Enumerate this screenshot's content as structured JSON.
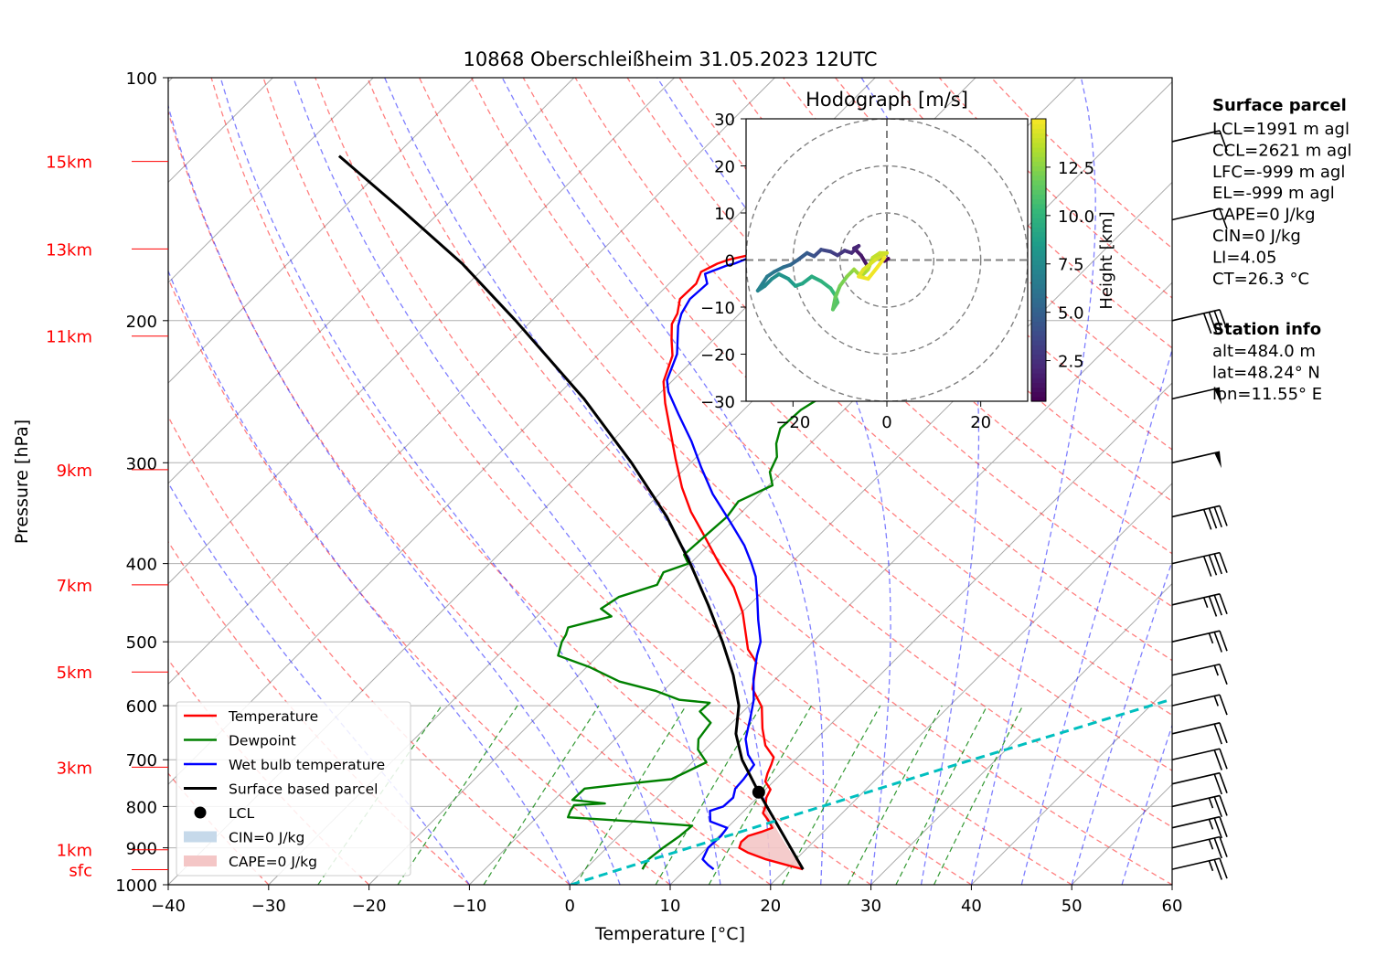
{
  "chart_data": {
    "type": "skew-t",
    "title": "10868 Oberschleißheim 31.05.2023 12UTC",
    "xlabel": "Temperature [°C]",
    "ylabel": "Pressure [hPa]",
    "xlim": [
      -40,
      60
    ],
    "ylim": [
      1000,
      100
    ],
    "x_ticks": [
      -40,
      -30,
      -20,
      -10,
      0,
      10,
      20,
      30,
      40,
      50,
      60
    ],
    "x_tick_labels": [
      "−40",
      "−30",
      "−20",
      "−10",
      "0",
      "10",
      "20",
      "30",
      "40",
      "50",
      "60"
    ],
    "p_ticks": [
      100,
      200,
      300,
      400,
      500,
      600,
      700,
      800,
      900,
      1000
    ],
    "height_labels": [
      {
        "label": "15km",
        "p": 127
      },
      {
        "label": "13km",
        "p": 163
      },
      {
        "label": "11km",
        "p": 209
      },
      {
        "label": "9km",
        "p": 306
      },
      {
        "label": "7km",
        "p": 425
      },
      {
        "label": "5km",
        "p": 545
      },
      {
        "label": "3km",
        "p": 715
      },
      {
        "label": "1km",
        "p": 905
      },
      {
        "label": "sfc",
        "p": 958
      }
    ],
    "series": [
      {
        "name": "Temperature",
        "color": "#ff0000",
        "points": [
          [
            21.7,
            957
          ],
          [
            19.6,
            945
          ],
          [
            17.0,
            930
          ],
          [
            14.5,
            912
          ],
          [
            13.2,
            900
          ],
          [
            12.8,
            885
          ],
          [
            12.9,
            870
          ],
          [
            13.8,
            860
          ],
          [
            14.5,
            850
          ],
          [
            13.2,
            830
          ],
          [
            12.1,
            815
          ],
          [
            11.7,
            800
          ],
          [
            10.9,
            780
          ],
          [
            10.5,
            762
          ],
          [
            9.2,
            745
          ],
          [
            8.6,
            728
          ],
          [
            8.1,
            710
          ],
          [
            7.6,
            695
          ],
          [
            5.6,
            672
          ],
          [
            3.6,
            640
          ],
          [
            1.4,
            602
          ],
          [
            -1.3,
            572
          ],
          [
            -3.6,
            530
          ],
          [
            -5.7,
            511
          ],
          [
            -9.9,
            460
          ],
          [
            -13.3,
            428
          ],
          [
            -17.4,
            398
          ],
          [
            -21.6,
            368
          ],
          [
            -25.1,
            345
          ],
          [
            -28.4,
            322
          ],
          [
            -32.0,
            296
          ],
          [
            -35.2,
            274
          ],
          [
            -38.5,
            253
          ],
          [
            -40.8,
            238
          ],
          [
            -42.5,
            221
          ],
          [
            -44.2,
            211
          ],
          [
            -45.7,
            202
          ],
          [
            -46.2,
            196
          ],
          [
            -47.4,
            188
          ],
          [
            -47.3,
            180
          ],
          [
            -48.0,
            174
          ],
          [
            -47.2,
            170
          ],
          [
            -46.4,
            168
          ],
          [
            -43.5,
            164
          ],
          [
            -43.5,
            160
          ],
          [
            -42.7,
            150
          ],
          [
            -42.4,
            145
          ],
          [
            -42.0,
            138
          ],
          [
            -42.2,
            132
          ],
          [
            -42.4,
            126
          ],
          [
            -42.3,
            120
          ],
          [
            -41.2,
            115
          ],
          [
            -40.5,
            113
          ]
        ]
      },
      {
        "name": "Dewpoint",
        "color": "#008000",
        "points": [
          [
            5.7,
            957
          ],
          [
            5.5,
            945
          ],
          [
            5.3,
            930
          ],
          [
            5.6,
            900
          ],
          [
            6.1,
            870
          ],
          [
            6.3,
            845
          ],
          [
            0.2,
            835
          ],
          [
            -6.9,
            825
          ],
          [
            -7.3,
            810
          ],
          [
            -7.5,
            797
          ],
          [
            -4.6,
            793
          ],
          [
            -8.2,
            785
          ],
          [
            -8.1,
            760
          ],
          [
            -4.5,
            750
          ],
          [
            -0.4,
            740
          ],
          [
            1.4,
            705
          ],
          [
            -0.7,
            680
          ],
          [
            -1.7,
            660
          ],
          [
            -2.1,
            630
          ],
          [
            -4.3,
            610
          ],
          [
            -4.2,
            595
          ],
          [
            -7.5,
            590
          ],
          [
            -10.8,
            575
          ],
          [
            -15.3,
            560
          ],
          [
            -19.8,
            537
          ],
          [
            -24.0,
            520
          ],
          [
            -25.0,
            500
          ],
          [
            -25.3,
            490
          ],
          [
            -25.8,
            480
          ],
          [
            -22.6,
            465
          ],
          [
            -24.4,
            455
          ],
          [
            -23.8,
            440
          ],
          [
            -21.2,
            425
          ],
          [
            -21.8,
            410
          ],
          [
            -20.2,
            400
          ],
          [
            -21.5,
            390
          ],
          [
            -21.3,
            372
          ],
          [
            -21.0,
            350
          ],
          [
            -21.4,
            335
          ],
          [
            -19.6,
            320
          ],
          [
            -21.2,
            308
          ],
          [
            -22.0,
            295
          ],
          [
            -23.4,
            284
          ],
          [
            -24.5,
            272
          ],
          [
            -24.3,
            258
          ],
          [
            -23.2,
            245
          ],
          [
            -22.5,
            232
          ],
          [
            -23.5,
            220
          ],
          [
            -24.2,
            210
          ],
          [
            -24.2,
            198
          ],
          [
            -24.0,
            190
          ],
          [
            -24.9,
            180
          ],
          [
            -31.0,
            172
          ],
          [
            -32.0,
            165
          ],
          [
            -31.5,
            155
          ],
          [
            -31.7,
            145
          ],
          [
            -32.0,
            135
          ],
          [
            -32.7,
            125
          ],
          [
            -33.0,
            119
          ],
          [
            -33.0,
            114
          ],
          [
            -32.7,
            113
          ]
        ]
      },
      {
        "name": "Wet bulb temperature",
        "color": "#0000ff",
        "points": [
          [
            12.8,
            957
          ],
          [
            11.8,
            945
          ],
          [
            10.7,
            930
          ],
          [
            10.1,
            900
          ],
          [
            10.2,
            870
          ],
          [
            10.0,
            850
          ],
          [
            7.7,
            835
          ],
          [
            6.6,
            810
          ],
          [
            7.5,
            800
          ],
          [
            7.6,
            780
          ],
          [
            6.9,
            760
          ],
          [
            6.8,
            740
          ],
          [
            6.4,
            710
          ],
          [
            4.8,
            690
          ],
          [
            3.0,
            660
          ],
          [
            1.3,
            620
          ],
          [
            -0.1,
            590
          ],
          [
            -2.2,
            556
          ],
          [
            -4.2,
            520
          ],
          [
            -5.2,
            500
          ],
          [
            -7.6,
            470
          ],
          [
            -10.0,
            440
          ],
          [
            -12.2,
            415
          ],
          [
            -13.9,
            400
          ],
          [
            -16.4,
            380
          ],
          [
            -20.2,
            355
          ],
          [
            -24.7,
            328
          ],
          [
            -28.5,
            304
          ],
          [
            -32.1,
            282
          ],
          [
            -36.1,
            261
          ],
          [
            -39.3,
            245
          ],
          [
            -40.6,
            237
          ],
          [
            -42.2,
            220
          ],
          [
            -43.6,
            211
          ],
          [
            -44.9,
            203
          ],
          [
            -45.8,
            196
          ],
          [
            -46.4,
            188
          ],
          [
            -46.2,
            180
          ],
          [
            -47.4,
            175
          ],
          [
            -46.1,
            171
          ],
          [
            -45.5,
            170
          ],
          [
            -43.6,
            164
          ],
          [
            -43.5,
            157
          ],
          [
            -42.9,
            150
          ],
          [
            -42.3,
            141
          ],
          [
            -42.1,
            135
          ],
          [
            -42.1,
            126
          ],
          [
            -42.5,
            120
          ],
          [
            -41.2,
            114
          ],
          [
            -40.8,
            113
          ]
        ]
      },
      {
        "name": "Surface based parcel",
        "color": "#000000",
        "points": [
          [
            21.7,
            957
          ],
          [
            9.6,
            768
          ],
          [
            4.7,
            700
          ],
          [
            1.5,
            650
          ],
          [
            -1.0,
            600
          ],
          [
            -4.6,
            550
          ],
          [
            -9.0,
            500
          ],
          [
            -14.1,
            450
          ],
          [
            -20.0,
            400
          ],
          [
            -27.0,
            350
          ],
          [
            -35.9,
            300
          ],
          [
            -47.0,
            250
          ],
          [
            -61.6,
            200
          ],
          [
            -72.6,
            170
          ],
          [
            -84.4,
            145
          ],
          [
            -95.6,
            125
          ]
        ]
      },
      {
        "name": "Mixing line (CT)",
        "color": "#00bfbf",
        "points": [
          [
            0.1,
            1000
          ],
          [
            26.3,
            712
          ],
          [
            40,
            600
          ],
          [
            55,
            500
          ],
          [
            70,
            420
          ],
          [
            85,
            350
          ],
          [
            100,
            295
          ],
          [
            110,
            262
          ]
        ]
      }
    ],
    "lcl": {
      "name": "LCL",
      "t": 9.6,
      "p": 768
    },
    "legend": {
      "placement": "lower-left",
      "entries": [
        "Temperature",
        "Dewpoint",
        "Wet bulb temperature",
        "Surface based parcel",
        "LCL",
        "CIN=0 J/kg",
        "CAPE=0 J/kg"
      ]
    },
    "hodograph": {
      "title": "Hodograph [m/s]",
      "xlim": [
        -30,
        30
      ],
      "ylim": [
        -30,
        30
      ],
      "ticks": [
        -20,
        0,
        20
      ],
      "tick_labels": [
        "−20",
        "0",
        "20"
      ],
      "y_ticks": [
        -30,
        -20,
        -10,
        0,
        10,
        20,
        30
      ],
      "y_tick_labels": [
        "−30",
        "−20",
        "−10",
        "0",
        "10",
        "20",
        "30"
      ],
      "rings": [
        10,
        20,
        30
      ],
      "colorbar_label": "Height [km]",
      "colorbar_ticks": [
        2.5,
        5.0,
        7.5,
        10.0,
        12.5
      ],
      "colorbar_range": [
        0.4,
        15
      ],
      "points": [
        [
          0.3,
          0.3,
          0.4
        ],
        [
          -0.5,
          -0.2,
          0.6
        ],
        [
          -1.5,
          1.0,
          0.8
        ],
        [
          -3.0,
          0.0,
          1.0
        ],
        [
          -4.0,
          -1.5,
          1.2
        ],
        [
          -5.5,
          1.0,
          1.5
        ],
        [
          -7.0,
          2.5,
          1.8
        ],
        [
          -6.0,
          3.0,
          2.0
        ],
        [
          -7.5,
          1.5,
          2.3
        ],
        [
          -9.0,
          2.0,
          2.7
        ],
        [
          -10.5,
          1.0,
          3.0
        ],
        [
          -12.0,
          1.8,
          3.4
        ],
        [
          -14.0,
          2.2,
          3.8
        ],
        [
          -15.5,
          0.8,
          4.2
        ],
        [
          -17.0,
          1.5,
          4.6
        ],
        [
          -19.0,
          0.0,
          5.0
        ],
        [
          -20.5,
          -1.0,
          5.4
        ],
        [
          -22.0,
          -1.5,
          5.8
        ],
        [
          -24.0,
          -2.5,
          6.2
        ],
        [
          -25.5,
          -3.5,
          6.5
        ],
        [
          -26.5,
          -5.0,
          6.8
        ],
        [
          -27.5,
          -6.5,
          7.0
        ],
        [
          -26.0,
          -5.5,
          7.2
        ],
        [
          -24.5,
          -4.0,
          7.5
        ],
        [
          -23.0,
          -3.0,
          7.9
        ],
        [
          -21.0,
          -4.0,
          8.3
        ],
        [
          -19.5,
          -5.5,
          8.7
        ],
        [
          -18.0,
          -5.0,
          9.0
        ],
        [
          -16.0,
          -3.5,
          9.4
        ],
        [
          -14.0,
          -4.5,
          9.8
        ],
        [
          -12.0,
          -6.0,
          10.2
        ],
        [
          -11.0,
          -7.5,
          10.6
        ],
        [
          -10.5,
          -9.0,
          11.0
        ],
        [
          -11.5,
          -10.5,
          11.3
        ],
        [
          -11.0,
          -8.0,
          11.7
        ],
        [
          -10.0,
          -5.5,
          12.0
        ],
        [
          -8.5,
          -3.5,
          12.4
        ],
        [
          -7.0,
          -2.0,
          12.8
        ],
        [
          -5.5,
          -3.5,
          13.1
        ],
        [
          -4.0,
          -2.0,
          13.4
        ],
        [
          -3.0,
          0.5,
          13.7
        ],
        [
          -1.5,
          1.5,
          13.9
        ],
        [
          0.0,
          1.5,
          14.0
        ],
        [
          -2.5,
          0.0,
          14.2
        ],
        [
          -5.0,
          -2.0,
          14.4
        ],
        [
          -6.0,
          -3.5,
          14.6
        ],
        [
          -4.0,
          -4.0,
          14.7
        ],
        [
          -2.0,
          -1.5,
          14.8
        ],
        [
          -0.5,
          0.5,
          14.9
        ]
      ]
    },
    "barbs": [
      {
        "p": 957,
        "speed": 25
      },
      {
        "p": 900,
        "speed": 25
      },
      {
        "p": 850,
        "speed": 25
      },
      {
        "p": 800,
        "speed": 25
      },
      {
        "p": 750,
        "speed": 20
      },
      {
        "p": 700,
        "speed": 20
      },
      {
        "p": 650,
        "speed": 20
      },
      {
        "p": 600,
        "speed": 15
      },
      {
        "p": 550,
        "speed": 15
      },
      {
        "p": 500,
        "speed": 25
      },
      {
        "p": 450,
        "speed": 35
      },
      {
        "p": 400,
        "speed": 40
      },
      {
        "p": 350,
        "speed": 40
      },
      {
        "p": 300,
        "speed": 50
      },
      {
        "p": 250,
        "speed": 50
      },
      {
        "p": 200,
        "speed": 40
      },
      {
        "p": 150,
        "speed": 10
      },
      {
        "p": 120,
        "speed": 10
      }
    ],
    "parcel_info": {
      "heading": "Surface parcel",
      "lines": [
        "LCL=1991 m agl",
        "CCL=2621 m agl",
        "LFC=-999 m agl",
        "EL=-999 m agl",
        "CAPE=0 J/kg",
        "CIN=0 J/kg",
        "LI=4.05",
        "CT=26.3 °C"
      ]
    },
    "station_info": {
      "heading": "Station info",
      "lines": [
        "alt=484.0 m",
        "lat=48.24° N",
        "lon=11.55° E"
      ]
    },
    "colors": {
      "dry_adiabat": "#ff0000",
      "moist_adiabat": "#0000ff",
      "mixing_ratio": "#008000",
      "isotherm": "#808080",
      "height_labels": "#ff0000",
      "cape_fill": "#f4c6c6",
      "cin_fill": "#c6d9ea"
    }
  }
}
